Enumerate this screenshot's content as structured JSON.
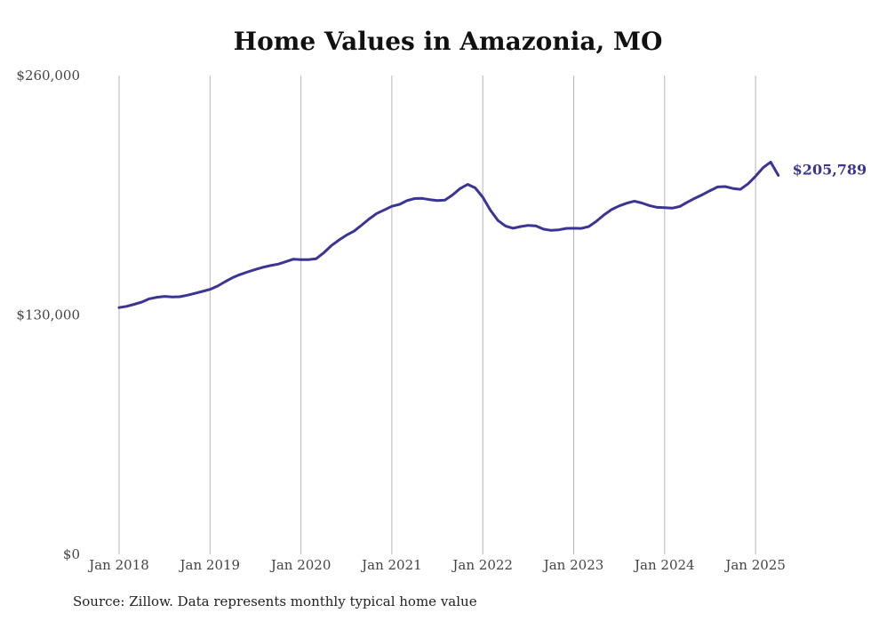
{
  "chart_data": {
    "type": "line",
    "title": "Home Values in Amazonia, MO",
    "xlabel": "",
    "ylabel": "",
    "ylim": [
      0,
      260000
    ],
    "yticks": [
      0,
      130000,
      260000
    ],
    "ytick_labels": [
      "$0",
      "$130,000",
      "$260,000"
    ],
    "x_ticks": [
      "2018-01",
      "2019-01",
      "2020-01",
      "2021-01",
      "2022-01",
      "2023-01",
      "2024-01",
      "2025-01"
    ],
    "xtick_labels": [
      "Jan 2018",
      "Jan 2019",
      "Jan 2020",
      "Jan 2021",
      "Jan 2022",
      "Jan 2023",
      "Jan 2024",
      "Jan 2025"
    ],
    "grid": "vertical",
    "line_color": "#3a3595",
    "end_label": "$205,789",
    "series": [
      {
        "x": [
          "2018-01",
          "2018-02",
          "2018-03",
          "2018-04",
          "2018-05",
          "2018-06",
          "2018-07",
          "2018-08",
          "2018-09",
          "2018-10",
          "2018-11",
          "2018-12",
          "2019-01",
          "2019-02",
          "2019-03",
          "2019-04",
          "2019-05",
          "2019-06",
          "2019-07",
          "2019-08",
          "2019-09",
          "2019-10",
          "2019-11",
          "2019-12",
          "2020-01",
          "2020-02",
          "2020-03",
          "2020-04",
          "2020-05",
          "2020-06",
          "2020-07",
          "2020-08",
          "2020-09",
          "2020-10",
          "2020-11",
          "2020-12",
          "2021-01",
          "2021-02",
          "2021-03",
          "2021-04",
          "2021-05",
          "2021-06",
          "2021-07",
          "2021-08",
          "2021-09",
          "2021-10",
          "2021-11",
          "2021-12",
          "2022-01",
          "2022-02",
          "2022-03",
          "2022-04",
          "2022-05",
          "2022-06",
          "2022-07",
          "2022-08",
          "2022-09",
          "2022-10",
          "2022-11",
          "2022-12",
          "2023-01",
          "2023-02",
          "2023-03",
          "2023-04",
          "2023-05",
          "2023-06",
          "2023-07",
          "2023-08",
          "2023-09",
          "2023-10",
          "2023-11",
          "2023-12",
          "2024-01",
          "2024-02",
          "2024-03",
          "2024-04",
          "2024-05",
          "2024-06",
          "2024-07",
          "2024-08",
          "2024-09",
          "2024-10",
          "2024-11",
          "2024-12",
          "2025-01",
          "2025-02",
          "2025-03",
          "2025-04"
        ],
        "values": [
          134000,
          134700,
          135800,
          137000,
          138800,
          139600,
          140100,
          139800,
          139900,
          140700,
          141700,
          142800,
          143900,
          145700,
          148100,
          150300,
          152000,
          153400,
          154700,
          155900,
          156800,
          157600,
          158900,
          160300,
          160000,
          160000,
          160500,
          163700,
          167600,
          170600,
          173300,
          175500,
          178700,
          182100,
          185100,
          187000,
          189000,
          190000,
          192100,
          193200,
          193300,
          192600,
          192100,
          192300,
          195100,
          198600,
          200900,
          199000,
          193900,
          186900,
          181300,
          178300,
          177100,
          178000,
          178600,
          178400,
          176600,
          175900,
          176200,
          177000,
          177100,
          177000,
          178000,
          180900,
          184300,
          187200,
          189200,
          190700,
          191800,
          190800,
          189400,
          188400,
          188200,
          188000,
          188900,
          191200,
          193400,
          195300,
          197500,
          199500,
          199700,
          198700,
          198200,
          201200,
          205300,
          210000,
          213000,
          205789
        ]
      }
    ]
  },
  "footer": {
    "source": "Source: Zillow. Data represents monthly typical home value"
  }
}
